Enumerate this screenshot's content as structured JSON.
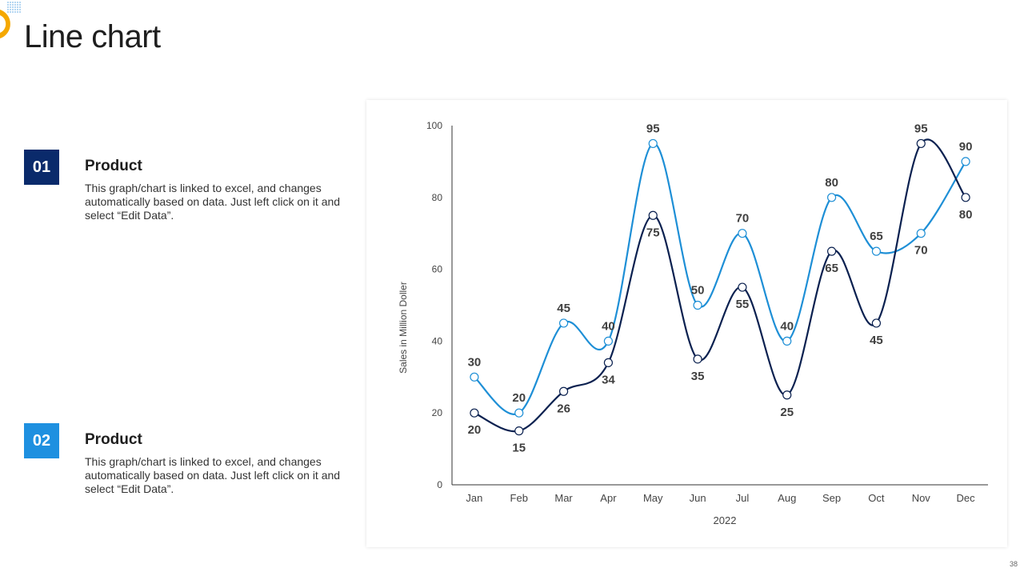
{
  "slide": {
    "title": "Line chart",
    "page_number": "38",
    "accent_color": "#f5a800"
  },
  "items": [
    {
      "number": "01",
      "title": "Product",
      "description": "This graph/chart is linked to excel, and changes automatically based on data. Just left click on it and select “Edit Data”.",
      "color": "#0a2a6b"
    },
    {
      "number": "02",
      "title": "Product",
      "description": "This graph/chart is linked to excel, and changes automatically based on data. Just left click on it and select “Edit Data”.",
      "color": "#1e90e0"
    }
  ],
  "chart_data": {
    "type": "line",
    "title": "",
    "xlabel": "2022",
    "ylabel": "Sales in Million Doller",
    "categories": [
      "Jan",
      "Feb",
      "Mar",
      "Apr",
      "May",
      "Jun",
      "Jul",
      "Aug",
      "Sep",
      "Oct",
      "Nov",
      "Dec"
    ],
    "ylim": [
      0,
      100
    ],
    "yticks": [
      0,
      20,
      40,
      60,
      80,
      100
    ],
    "grid": false,
    "smooth": true,
    "series": [
      {
        "name": "Product 02",
        "color": "#1e8fd6",
        "values": [
          30,
          20,
          45,
          40,
          95,
          50,
          70,
          40,
          80,
          65,
          70,
          90
        ]
      },
      {
        "name": "Product 01",
        "color": "#0b2150",
        "values": [
          20,
          15,
          26,
          34,
          75,
          35,
          55,
          25,
          65,
          45,
          95,
          80
        ]
      }
    ]
  }
}
